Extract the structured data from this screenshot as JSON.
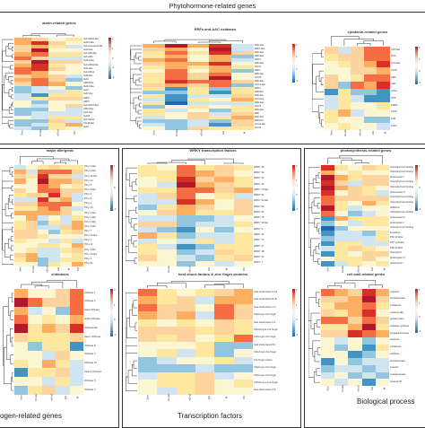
{
  "figure_title": "Phytohormone-related genes",
  "panels": [
    {
      "title": "auxin-related genes",
      "rows": 25,
      "cols": 4,
      "row_labels": [
        "IAA-ARG2-like",
        "IAA16-like",
        "IAA-aminoacid-like",
        "IAA4-like",
        "IAA-AR2-like",
        "IAA-ARG",
        "IAA13-like",
        "IAA-ARG2-like",
        "IAA1-like",
        "IAA-ARG1",
        "IAA8-like",
        "IAA9",
        "ARF9-like",
        "IAA16-like",
        "IAA3",
        "IAA7-like",
        "ARF6",
        "ARF5",
        "IAA-ARG2-like",
        "ARF4-like",
        "GH3-like",
        "IAA28",
        "IAA-ARG1",
        "SAUR-like",
        "IAA4"
      ],
      "col_labels": [
        "Sen",
        "Ovule",
        "eEnd",
        "Fle"
      ],
      "cbar_ticks": [
        "2",
        "1",
        "0",
        "-1",
        "-2"
      ]
    },
    {
      "title": "ERFs and AAC oxidases",
      "rows": 24,
      "cols": 5,
      "row_labels": [
        "ERF-like",
        "ERF1-like",
        "ERF-like",
        "ERF-like",
        "ERF6",
        "ERF-like",
        "ACO1",
        "ERF1",
        "ERF-like",
        "ACO5",
        "ERF-like",
        "ACO1-like",
        "ERF4",
        "ERF003",
        "ERF-like",
        "ACO-like",
        "ERF-like",
        "ACO4",
        "ERF-like",
        "ERF",
        "ERF-like",
        "ERF012",
        "ACO1-like",
        "ACO3"
      ],
      "col_labels": [
        "Sen",
        "Ovule",
        "eEnd",
        "Fle",
        "M"
      ],
      "cbar_ticks": [
        "2",
        "1",
        "0",
        "-1"
      ]
    },
    {
      "title": "cytokinin-related genes",
      "rows": 12,
      "cols": 5,
      "row_labels": [
        "CKX-like",
        "IPT3",
        "LOG-like",
        "CKX5",
        "ARR",
        "AHK",
        "LOG1",
        "IPT5",
        "ARR9",
        "CKX3",
        "AHP",
        "LOG7"
      ],
      "col_labels": [
        "Sen",
        "Ovule",
        "eEnd",
        "Fle",
        "M"
      ],
      "cbar_ticks": [
        "2",
        "1",
        "0",
        "-1"
      ]
    },
    {
      "title": "major allergenic",
      "rows": 22,
      "cols": 6,
      "row_labels": [
        "Phl p 1-like",
        "Phl p 1-like",
        "Phl p 11-like",
        "Phl p 12",
        "Phl p 4",
        "Phl p 3-like",
        "Phl p 6",
        "Phl p 5",
        "Phl p 1",
        "Phl p 13",
        "Phl p 2-like",
        "Phl p 1-like",
        "Phl p 5-like",
        "Phl p 4-like",
        "Phl p 7",
        "Phl p 12-like",
        "Phl p 1",
        "Phl p 11",
        "Phl p 4-like",
        "Phl p 13-like",
        "Phl p 2",
        "Phl p 5b"
      ],
      "col_labels": [
        "Sen",
        "Ovule",
        "eEnd",
        "Fle",
        "M",
        "Pd"
      ],
      "cbar_ticks": [
        "1",
        "0",
        "-1"
      ]
    },
    {
      "title": "WRKY transcription factors",
      "rows": 18,
      "cols": 6,
      "row_labels": [
        "WRKY 48",
        "WRKY 33",
        "WRKY 42",
        "WRKY 40",
        "WRKY 70-like",
        "WRKY 53",
        "WRKY 21-like",
        "WRKY 50",
        "WRKY 26",
        "WRKY 75",
        "WRKY 40-like",
        "WRKY 6",
        "WRKY 24",
        "WRKY 71",
        "WRKY 27",
        "WRKY 18",
        "WRKY 11",
        "WRKY 7"
      ],
      "col_labels": [
        "Sen",
        "Ovule",
        "eEnd",
        "Fle",
        "M",
        "Pd"
      ],
      "cbar_ticks": [
        "2",
        "1",
        "0",
        "-1"
      ]
    },
    {
      "title": "photosynthesis-related genes",
      "rows": 20,
      "cols": 5,
      "row_labels": [
        "chlorophyll a-b binding",
        "chlorophyll a-b binding",
        "photosystem I",
        "chlorophyll a-b binding",
        "chlorophyll a-b binding",
        "photosystem II",
        "chlorophyll a-b binding",
        "chlorophyll a-b binding",
        "RuBisCO",
        "chlorophyll a-b binding",
        "photosystem II",
        "photosystem I",
        "chlorophyll a-b binding",
        "ferredoxin",
        "PSII 10 kDa",
        "ATP synthase",
        "PSII 22 kDa",
        "chlorophyll",
        "photosystem II",
        "plastocyanin"
      ],
      "col_labels": [
        "Sen",
        "Ovule",
        "eEnd",
        "Fle",
        "M"
      ],
      "cbar_ticks": [
        "1",
        "0",
        "-1"
      ]
    },
    {
      "title": "chitinases",
      "rows": 12,
      "cols": 5,
      "row_labels": [
        "chitinase 1",
        "chitinase 2",
        "basic chitinase",
        "acidic chitinase",
        "chitinase-like",
        "class I chitinase",
        "chitinase 8",
        "chitinase 4",
        "chitinase 10",
        "class II chitinase",
        "chitinase 5",
        "chitinase 3"
      ],
      "col_labels": [
        "Sen",
        "Ovule",
        "eEnd",
        "Fle",
        "M"
      ],
      "cbar_ticks": [
        "2",
        "1",
        "0",
        "-1"
      ]
    },
    {
      "title": "heat shock factors & zinc finger proteins",
      "rows": 14,
      "cols": 6,
      "row_labels": [
        "heat shock factor A-2a",
        "heat shock factor B-2b",
        "heat shock factor C-1",
        "C2H2-type zinc finger",
        "heat shock factor A-4",
        "C3HC4-type zinc finger",
        "C2H2-type zinc finger",
        "heat shock factor B-1",
        "C2H2-type zinc finger",
        "zinc finger protein",
        "C2H2-type zinc finger",
        "C2H2-type zinc finger",
        "C3HC4-type zinc finger",
        "heat shock factor A-9"
      ],
      "col_labels": [
        "Sen",
        "Ovule",
        "eEnd",
        "Fle",
        "M",
        "Pd"
      ],
      "cbar_ticks": [
        "2",
        "1",
        "0",
        "-1"
      ]
    },
    {
      "title": "cell wall-related genes",
      "rows": 14,
      "cols": 5,
      "row_labels": [
        "expansin",
        "pectinesterase",
        "xyloglucan",
        "expansin-like",
        "pectate lyase",
        "cellulose synthase",
        "polygalacturonase",
        "expansin",
        "xyloglucan",
        "cellulose",
        "pectinesterase",
        "extensin",
        "endoglucanase",
        "expansin B"
      ],
      "col_labels": [
        "Sen",
        "Ovule",
        "eEnd",
        "Fle",
        "M"
      ],
      "cbar_ticks": [
        "2",
        "1",
        "0",
        "-1"
      ]
    }
  ],
  "captions": {
    "left": "ogen-related genes",
    "middle": "Transcription factors",
    "right": "Biological process"
  },
  "colors": {
    "high": "#b2182b",
    "mid": "#f7f7f7",
    "low": "#2166ac",
    "cream": "#fee8a0"
  }
}
